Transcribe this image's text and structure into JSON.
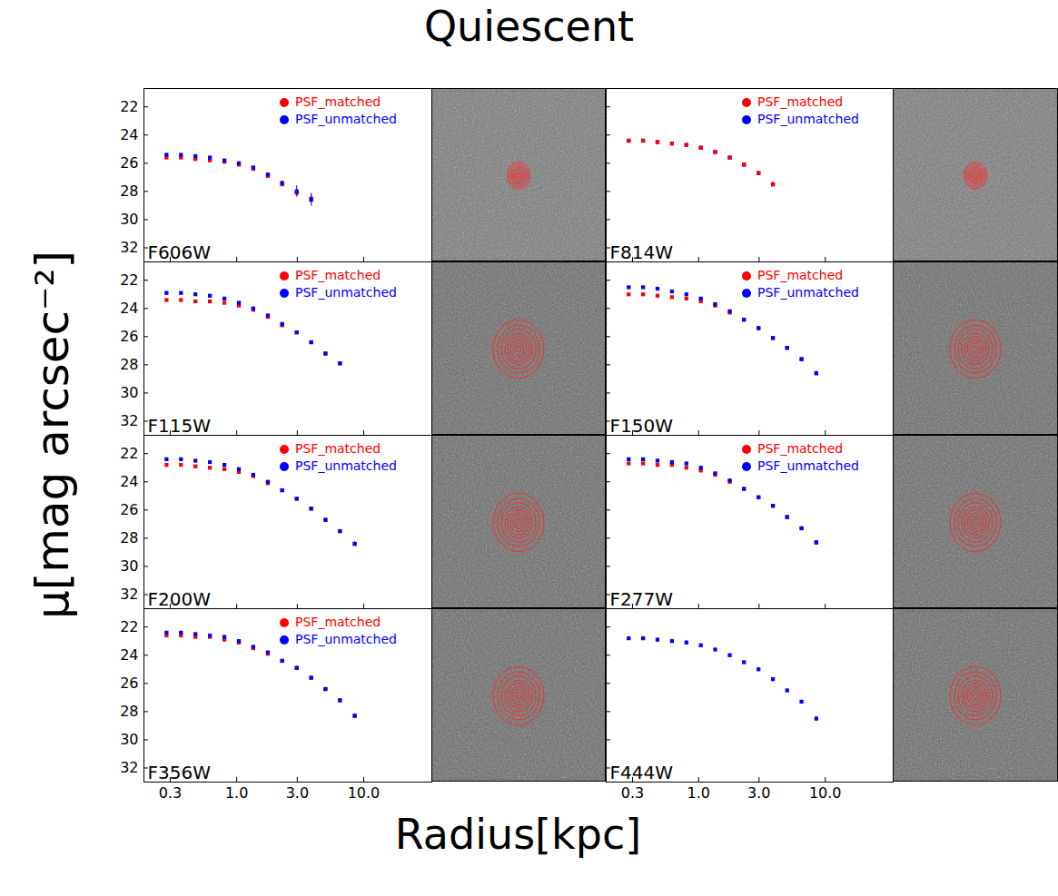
{
  "figure": {
    "title": "Quiescent",
    "xlabel": "Radius[kpc]",
    "ylabel": "μ[mag arcsec⁻²]"
  },
  "chart_data": [
    {
      "type": "scatter",
      "title": "F606W",
      "log": "x",
      "legend": "top-right",
      "tick_labels": "y",
      "x": [
        0.28,
        0.364,
        0.473,
        0.615,
        0.8,
        1.04,
        1.35,
        1.76,
        2.28,
        2.97,
        3.86
      ],
      "xlim": [
        0.186,
        34.4
      ],
      "xticks": [
        {
          "value": 0.3,
          "label": "0.3"
        },
        {
          "value": 1,
          "label": "1.0"
        },
        {
          "value": 3,
          "label": "3.0"
        },
        {
          "value": 10,
          "label": "10.0"
        }
      ],
      "ylim": [
        33,
        20.7
      ],
      "yticks": [
        22,
        24,
        26,
        28,
        30,
        32
      ],
      "series": [
        {
          "name": "PSF_matched",
          "color": "#ff0000",
          "marker": "square",
          "values": [
            25.6,
            25.6,
            25.7,
            25.8,
            25.9,
            26.1,
            26.4,
            26.9,
            27.5,
            28.1,
            28.5
          ],
          "errors": [
            0.05,
            0.05,
            0.05,
            0.05,
            0.05,
            0.06,
            0.07,
            0.1,
            0.15,
            0.25,
            0.35
          ]
        },
        {
          "name": "PSF_unmatched",
          "color": "#0000ff",
          "marker": "square",
          "values": [
            25.4,
            25.4,
            25.5,
            25.6,
            25.8,
            26.0,
            26.3,
            26.8,
            27.4,
            28.0,
            28.6
          ],
          "errors": [
            0.05,
            0.05,
            0.05,
            0.05,
            0.05,
            0.06,
            0.07,
            0.1,
            0.15,
            0.4,
            0.45
          ]
        }
      ]
    },
    {
      "type": "scatter",
      "title": "F814W",
      "log": "x",
      "legend": "top-right",
      "tick_labels": false,
      "x": [
        0.28,
        0.364,
        0.473,
        0.615,
        0.8,
        1.04,
        1.35,
        1.76,
        2.28,
        2.97,
        3.86
      ],
      "xlim": [
        0.186,
        34.4
      ],
      "xticks": [
        {
          "value": 0.3,
          "label": "0.3"
        },
        {
          "value": 1,
          "label": "1.0"
        },
        {
          "value": 3,
          "label": "3.0"
        },
        {
          "value": 10,
          "label": "10.0"
        }
      ],
      "ylim": [
        33,
        20.7
      ],
      "yticks": [
        22,
        24,
        26,
        28,
        30,
        32
      ],
      "series": [
        {
          "name": "PSF_unmatched",
          "color": "#0000ff",
          "marker": "square",
          "values": [
            24.4,
            24.4,
            24.5,
            24.6,
            24.7,
            24.9,
            25.2,
            25.6,
            26.1,
            26.7,
            27.5
          ],
          "errors": [
            0.03,
            0.03,
            0.03,
            0.03,
            0.03,
            0.04,
            0.04,
            0.05,
            0.07,
            0.1,
            0.15
          ]
        },
        {
          "name": "PSF_matched",
          "color": "#ff0000",
          "marker": "square",
          "values": [
            24.4,
            24.4,
            24.5,
            24.6,
            24.7,
            24.9,
            25.2,
            25.6,
            26.1,
            26.7,
            27.5
          ],
          "errors": [
            0.03,
            0.03,
            0.03,
            0.03,
            0.03,
            0.04,
            0.04,
            0.05,
            0.07,
            0.1,
            0.15
          ]
        }
      ]
    },
    {
      "type": "scatter",
      "title": "F115W",
      "log": "x",
      "legend": "top-right",
      "tick_labels": "y",
      "x": [
        0.28,
        0.364,
        0.473,
        0.615,
        0.8,
        1.04,
        1.35,
        1.76,
        2.28,
        2.97,
        3.86,
        5.0,
        6.5
      ],
      "xlim": [
        0.186,
        34.4
      ],
      "xticks": [
        {
          "value": 0.3,
          "label": "0.3"
        },
        {
          "value": 1,
          "label": "1.0"
        },
        {
          "value": 3,
          "label": "3.0"
        },
        {
          "value": 10,
          "label": "10.0"
        }
      ],
      "ylim": [
        33,
        20.7
      ],
      "yticks": [
        22,
        24,
        26,
        28,
        30,
        32
      ],
      "series": [
        {
          "name": "PSF_matched",
          "color": "#ff0000",
          "marker": "square",
          "values": [
            23.4,
            23.4,
            23.5,
            23.5,
            23.6,
            23.8,
            24.1,
            24.6,
            25.2,
            25.7,
            26.4,
            27.2,
            27.9
          ],
          "errors": [
            0.03,
            0.03,
            0.03,
            0.03,
            0.03,
            0.03,
            0.04,
            0.04,
            0.05,
            0.06,
            0.08,
            0.1,
            0.12
          ]
        },
        {
          "name": "PSF_unmatched",
          "color": "#0000ff",
          "marker": "square",
          "values": [
            22.9,
            22.9,
            23.0,
            23.1,
            23.3,
            23.6,
            24.0,
            24.5,
            25.1,
            25.7,
            26.4,
            27.2,
            27.9
          ],
          "errors": [
            0.03,
            0.03,
            0.03,
            0.03,
            0.03,
            0.03,
            0.04,
            0.04,
            0.05,
            0.06,
            0.08,
            0.1,
            0.12
          ]
        }
      ]
    },
    {
      "type": "scatter",
      "title": "F150W",
      "log": "x",
      "legend": "top-right",
      "tick_labels": false,
      "x": [
        0.28,
        0.364,
        0.473,
        0.615,
        0.8,
        1.04,
        1.35,
        1.76,
        2.28,
        2.97,
        3.86,
        5.0,
        6.5,
        8.5
      ],
      "xlim": [
        0.186,
        34.4
      ],
      "xticks": [
        {
          "value": 0.3,
          "label": "0.3"
        },
        {
          "value": 1,
          "label": "1.0"
        },
        {
          "value": 3,
          "label": "3.0"
        },
        {
          "value": 10,
          "label": "10.0"
        }
      ],
      "ylim": [
        33,
        20.7
      ],
      "yticks": [
        22,
        24,
        26,
        28,
        30,
        32
      ],
      "series": [
        {
          "name": "PSF_matched",
          "color": "#ff0000",
          "marker": "square",
          "values": [
            23.0,
            23.0,
            23.1,
            23.2,
            23.3,
            23.5,
            23.8,
            24.3,
            24.8,
            25.4,
            26.1,
            26.8,
            27.6,
            28.6
          ],
          "errors": [
            0.03,
            0.03,
            0.03,
            0.03,
            0.03,
            0.03,
            0.04,
            0.04,
            0.05,
            0.06,
            0.07,
            0.09,
            0.11,
            0.15
          ]
        },
        {
          "name": "PSF_unmatched",
          "color": "#0000ff",
          "marker": "square",
          "values": [
            22.5,
            22.5,
            22.6,
            22.8,
            23.0,
            23.3,
            23.7,
            24.2,
            24.8,
            25.4,
            26.1,
            26.8,
            27.6,
            28.6
          ],
          "errors": [
            0.03,
            0.03,
            0.03,
            0.03,
            0.03,
            0.03,
            0.04,
            0.04,
            0.05,
            0.06,
            0.07,
            0.09,
            0.11,
            0.15
          ]
        }
      ]
    },
    {
      "type": "scatter",
      "title": "F200W",
      "log": "x",
      "legend": "top-right",
      "tick_labels": "y",
      "x": [
        0.28,
        0.364,
        0.473,
        0.615,
        0.8,
        1.04,
        1.35,
        1.76,
        2.28,
        2.97,
        3.86,
        5.0,
        6.5,
        8.5
      ],
      "xlim": [
        0.186,
        34.4
      ],
      "xticks": [
        {
          "value": 0.3,
          "label": "0.3"
        },
        {
          "value": 1,
          "label": "1.0"
        },
        {
          "value": 3,
          "label": "3.0"
        },
        {
          "value": 10,
          "label": "10.0"
        }
      ],
      "ylim": [
        33,
        20.7
      ],
      "yticks": [
        22,
        24,
        26,
        28,
        30,
        32
      ],
      "series": [
        {
          "name": "PSF_matched",
          "color": "#ff0000",
          "marker": "square",
          "values": [
            22.8,
            22.8,
            22.9,
            23.0,
            23.1,
            23.3,
            23.6,
            24.1,
            24.6,
            25.2,
            25.9,
            26.7,
            27.5,
            28.4
          ],
          "errors": [
            0.03,
            0.03,
            0.03,
            0.03,
            0.03,
            0.03,
            0.04,
            0.04,
            0.05,
            0.06,
            0.07,
            0.09,
            0.11,
            0.14
          ]
        },
        {
          "name": "PSF_unmatched",
          "color": "#0000ff",
          "marker": "square",
          "values": [
            22.4,
            22.4,
            22.5,
            22.6,
            22.8,
            23.1,
            23.5,
            24.0,
            24.6,
            25.2,
            25.9,
            26.7,
            27.5,
            28.4
          ],
          "errors": [
            0.03,
            0.03,
            0.03,
            0.03,
            0.03,
            0.03,
            0.04,
            0.04,
            0.05,
            0.06,
            0.07,
            0.09,
            0.11,
            0.14
          ]
        }
      ]
    },
    {
      "type": "scatter",
      "title": "F277W",
      "log": "x",
      "legend": "top-right",
      "tick_labels": false,
      "x": [
        0.28,
        0.364,
        0.473,
        0.615,
        0.8,
        1.04,
        1.35,
        1.76,
        2.28,
        2.97,
        3.86,
        5.0,
        6.5,
        8.5
      ],
      "xlim": [
        0.186,
        34.4
      ],
      "xticks": [
        {
          "value": 0.3,
          "label": "0.3"
        },
        {
          "value": 1,
          "label": "1.0"
        },
        {
          "value": 3,
          "label": "3.0"
        },
        {
          "value": 10,
          "label": "10.0"
        }
      ],
      "ylim": [
        33,
        20.7
      ],
      "yticks": [
        22,
        24,
        26,
        28,
        30,
        32
      ],
      "series": [
        {
          "name": "PSF_matched",
          "color": "#ff0000",
          "marker": "square",
          "values": [
            22.7,
            22.7,
            22.8,
            22.8,
            23.0,
            23.2,
            23.5,
            24.0,
            24.5,
            25.1,
            25.7,
            26.5,
            27.3,
            28.3
          ],
          "errors": [
            0.03,
            0.03,
            0.03,
            0.03,
            0.03,
            0.03,
            0.04,
            0.04,
            0.05,
            0.06,
            0.07,
            0.09,
            0.11,
            0.14
          ]
        },
        {
          "name": "PSF_unmatched",
          "color": "#0000ff",
          "marker": "square",
          "values": [
            22.4,
            22.4,
            22.5,
            22.6,
            22.7,
            23.0,
            23.4,
            23.9,
            24.5,
            25.1,
            25.7,
            26.5,
            27.3,
            28.3
          ],
          "errors": [
            0.03,
            0.03,
            0.03,
            0.03,
            0.03,
            0.03,
            0.04,
            0.04,
            0.05,
            0.06,
            0.07,
            0.09,
            0.11,
            0.14
          ]
        }
      ]
    },
    {
      "type": "scatter",
      "title": "F356W",
      "log": "x",
      "legend": "top-right",
      "x": [
        0.28,
        0.364,
        0.473,
        0.615,
        0.8,
        1.04,
        1.35,
        1.76,
        2.28,
        2.97,
        3.86,
        5.0,
        6.5,
        8.5
      ],
      "xlim": [
        0.186,
        34.4
      ],
      "xticks": [
        {
          "value": 0.3,
          "label": "0.3"
        },
        {
          "value": 1,
          "label": "1.0"
        },
        {
          "value": 3,
          "label": "3.0"
        },
        {
          "value": 10,
          "label": "10.0"
        }
      ],
      "ylim": [
        33,
        20.7
      ],
      "yticks": [
        22,
        24,
        26,
        28,
        30,
        32
      ],
      "series": [
        {
          "name": "PSF_matched",
          "color": "#ff0000",
          "marker": "square",
          "values": [
            22.6,
            22.6,
            22.7,
            22.7,
            22.9,
            23.1,
            23.5,
            23.9,
            24.4,
            24.9,
            25.6,
            26.4,
            27.2,
            28.3
          ],
          "errors": [
            0.03,
            0.03,
            0.03,
            0.03,
            0.03,
            0.03,
            0.04,
            0.04,
            0.05,
            0.06,
            0.07,
            0.09,
            0.11,
            0.14
          ]
        },
        {
          "name": "PSF_unmatched",
          "color": "#0000ff",
          "marker": "square",
          "values": [
            22.4,
            22.4,
            22.5,
            22.6,
            22.7,
            23.0,
            23.4,
            23.8,
            24.4,
            24.9,
            25.6,
            26.4,
            27.2,
            28.3
          ],
          "errors": [
            0.03,
            0.03,
            0.03,
            0.03,
            0.03,
            0.03,
            0.04,
            0.04,
            0.05,
            0.06,
            0.07,
            0.09,
            0.11,
            0.14
          ]
        }
      ]
    },
    {
      "type": "scatter",
      "title": "F444W",
      "log": "x",
      "tick_labels": "x",
      "x": [
        0.28,
        0.364,
        0.473,
        0.615,
        0.8,
        1.04,
        1.35,
        1.76,
        2.28,
        2.97,
        3.86,
        5.0,
        6.5,
        8.5
      ],
      "xlim": [
        0.186,
        34.4
      ],
      "xticks": [
        {
          "value": 0.3,
          "label": "0.3"
        },
        {
          "value": 1,
          "label": "1.0"
        },
        {
          "value": 3,
          "label": "3.0"
        },
        {
          "value": 10,
          "label": "10.0"
        }
      ],
      "ylim": [
        33,
        20.7
      ],
      "yticks": [
        22,
        24,
        26,
        28,
        30,
        32
      ],
      "series": [
        {
          "name": "PSF_unmatched",
          "color": "#0000ff",
          "marker": "square",
          "values": [
            22.8,
            22.8,
            22.9,
            23.0,
            23.1,
            23.3,
            23.6,
            24.0,
            24.5,
            25.0,
            25.7,
            26.5,
            27.3,
            28.5
          ],
          "errors": [
            0.12,
            0.12,
            0.12,
            0.12,
            0.12,
            0.12,
            0.1,
            0.1,
            0.08,
            0.08,
            0.08,
            0.1,
            0.12,
            0.15
          ]
        }
      ]
    }
  ]
}
